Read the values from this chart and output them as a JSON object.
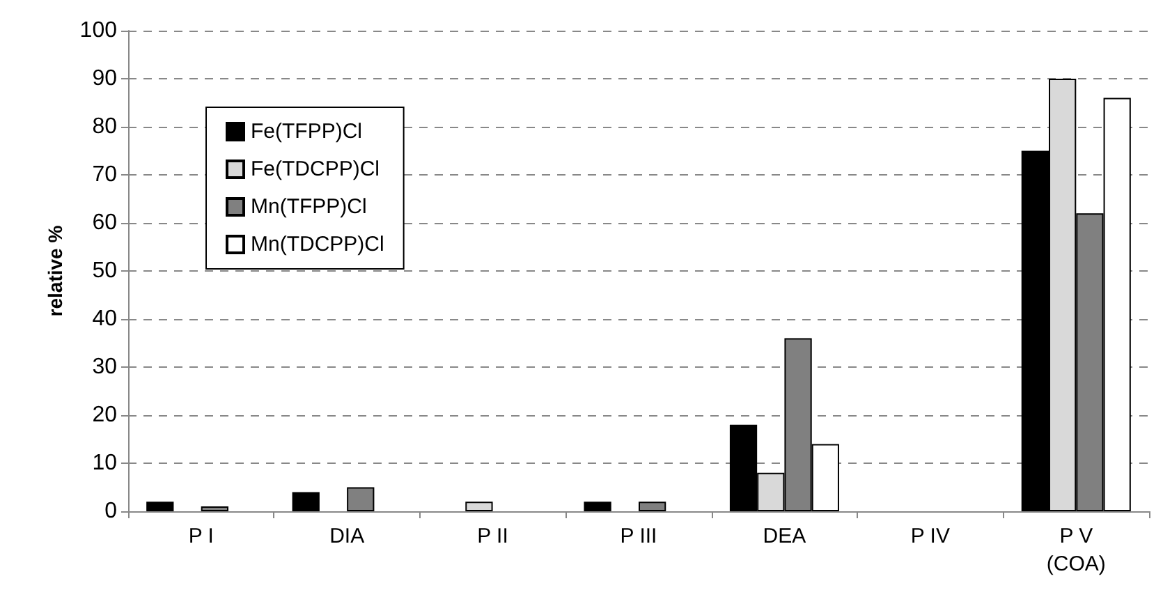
{
  "chart_data": {
    "type": "bar",
    "ylabel": "relative %",
    "categories": [
      "P I",
      "DIA",
      "P II",
      "P III",
      "DEA",
      "P IV",
      "P V\n(COA)"
    ],
    "series": [
      {
        "name": "Fe(TFPP)Cl",
        "color": "#000000",
        "values": [
          2,
          4,
          null,
          2,
          18,
          null,
          75
        ]
      },
      {
        "name": "Fe(TDCPP)Cl",
        "color": "#d9d9d9",
        "values": [
          null,
          null,
          2,
          null,
          8,
          null,
          90
        ]
      },
      {
        "name": "Mn(TFPP)Cl",
        "color": "#808080",
        "values": [
          1,
          5,
          null,
          2,
          36,
          null,
          62
        ]
      },
      {
        "name": "Mn(TDCPP)Cl",
        "color": "#ffffff",
        "values": [
          null,
          null,
          null,
          null,
          14,
          null,
          86
        ]
      }
    ],
    "ylim": [
      0,
      100
    ],
    "yticks": [
      0,
      10,
      20,
      30,
      40,
      50,
      60,
      70,
      80,
      90,
      100
    ],
    "grid": "y",
    "legend": "top left"
  }
}
